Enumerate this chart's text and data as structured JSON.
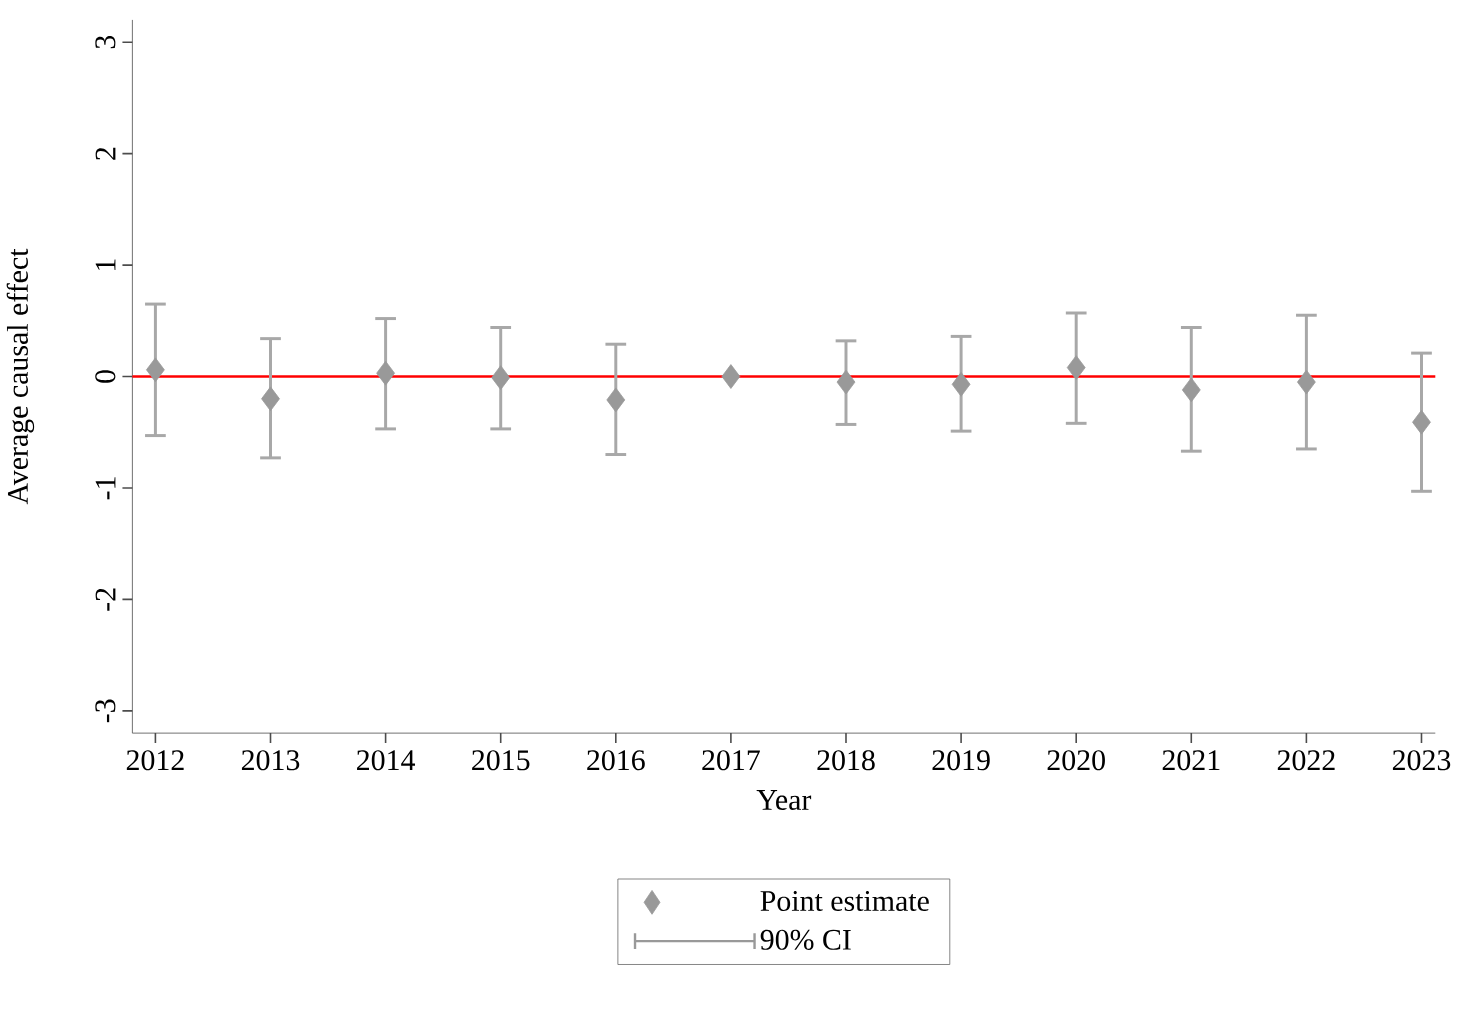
{
  "chart_data": {
    "type": "scatter",
    "xlabel": "Year",
    "ylabel": "Average causal effect",
    "x": [
      2012,
      2013,
      2014,
      2015,
      2016,
      2017,
      2018,
      2019,
      2020,
      2021,
      2022,
      2023
    ],
    "series": [
      {
        "name": "Point estimate",
        "color": "#999999",
        "values": [
          0.06,
          -0.2,
          0.03,
          -0.01,
          -0.21,
          0,
          -0.05,
          -0.07,
          0.08,
          -0.12,
          -0.05,
          -0.41
        ],
        "errors": [
          [
            -0.53,
            0.65
          ],
          [
            -0.73,
            0.34
          ],
          [
            -0.47,
            0.52
          ],
          [
            -0.47,
            0.44
          ],
          [
            -0.7,
            0.29
          ],
          null,
          [
            -0.43,
            0.32
          ],
          [
            -0.49,
            0.36
          ],
          [
            -0.42,
            0.57
          ],
          [
            -0.67,
            0.44
          ],
          [
            -0.65,
            0.55
          ],
          [
            -1.03,
            0.21
          ]
        ]
      }
    ],
    "annotations": [
      "90% CI"
    ],
    "ref_lines": [
      {
        "axis": "y",
        "value": 0,
        "color": "#ff0000"
      }
    ],
    "xlim": [
      2011.8,
      2023.12
    ],
    "ylim": [
      -3.2,
      3.2
    ],
    "xticks": [
      2012,
      2013,
      2014,
      2015,
      2016,
      2017,
      2018,
      2019,
      2020,
      2021,
      2022,
      2023
    ],
    "yticks": [
      -3,
      -2,
      -1,
      0,
      1,
      2,
      3
    ],
    "marker": "diamond",
    "legend": "bottom",
    "grid": false
  }
}
